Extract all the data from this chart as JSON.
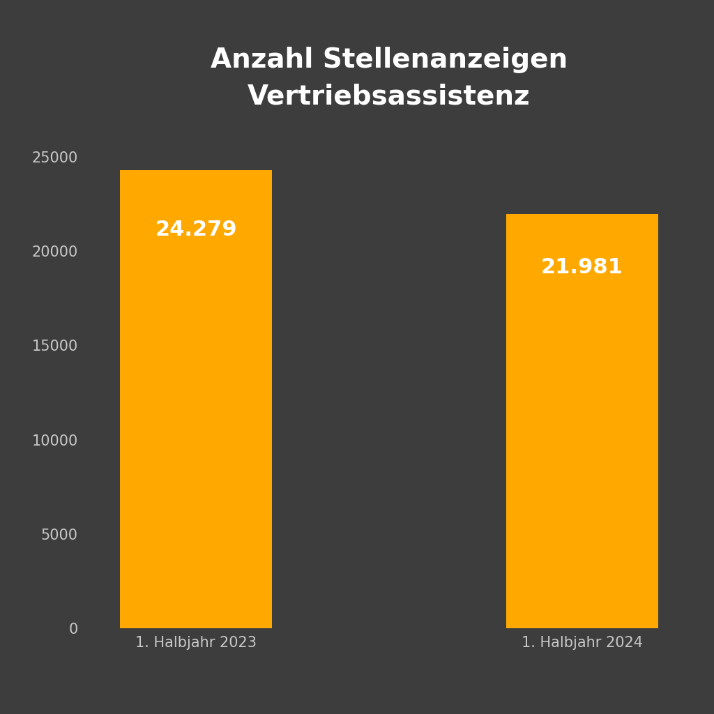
{
  "title": "Anzahl Stellenanzeigen\nVertriebsassistenz",
  "categories": [
    "1. Halbjahr 2023",
    "1. Halbjahr 2024"
  ],
  "values": [
    24279,
    21981
  ],
  "labels": [
    "24.279",
    "21.981"
  ],
  "bar_color": "#FFA800",
  "background_color": "#3d3d3d",
  "text_color": "#ffffff",
  "tick_color": "#c8c8c8",
  "title_fontsize": 28,
  "label_fontsize": 22,
  "tick_fontsize": 15,
  "xtick_fontsize": 15,
  "ylim": [
    0,
    26500
  ],
  "yticks": [
    0,
    5000,
    10000,
    15000,
    20000,
    25000
  ],
  "bar_width": 0.55,
  "positions": [
    0.3,
    1.7
  ],
  "xlim": [
    -0.1,
    2.1
  ]
}
